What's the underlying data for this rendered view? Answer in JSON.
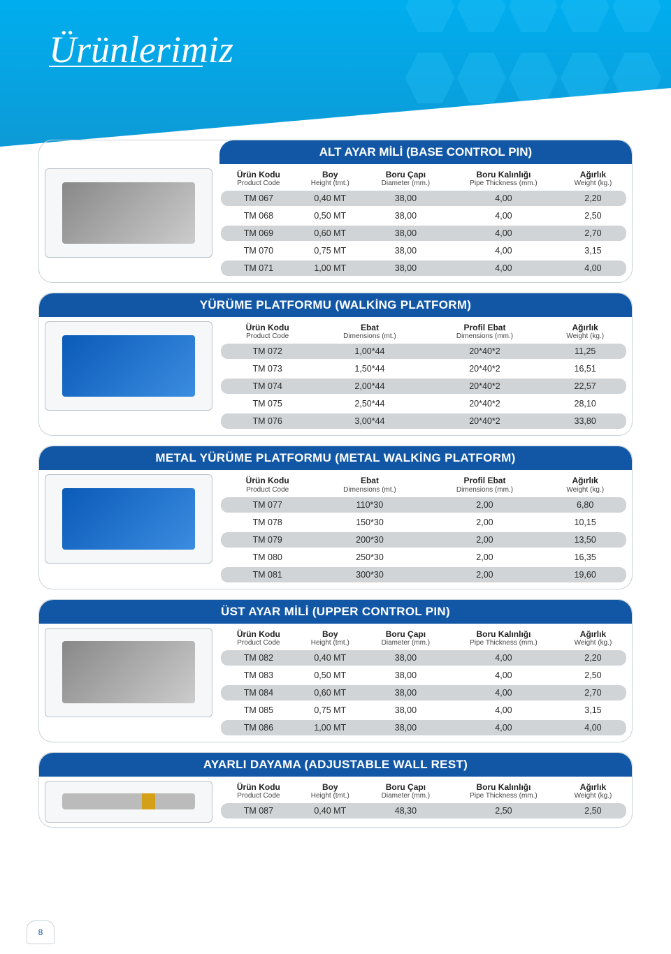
{
  "page_title": "Ürünlerimiz",
  "page_number": "8",
  "colors": {
    "header_bg": "#1157a6",
    "row_alt_bg": "#d0d4d7",
    "top_gradient_from": "#00aeef",
    "top_gradient_to": "#0d9ad6",
    "text": "#2a2a2a"
  },
  "sections": [
    {
      "title": "ALT AYAR MİLİ (BASE CONTROL PIN)",
      "image_style": "steel",
      "header_style": "partial",
      "columns": [
        {
          "label": "Ürün Kodu",
          "sub": "Product Code"
        },
        {
          "label": "Boy",
          "sub": "Height (tmt.)"
        },
        {
          "label": "Boru Çapı",
          "sub": "Diameter (mm.)"
        },
        {
          "label": "Boru Kalınlığı",
          "sub": "Pipe Thickness (mm.)"
        },
        {
          "label": "Ağırlık",
          "sub": "Weight (kg.)"
        }
      ],
      "rows": [
        [
          "TM 067",
          "0,40 MT",
          "38,00",
          "4,00",
          "2,20"
        ],
        [
          "TM 068",
          "0,50 MT",
          "38,00",
          "4,00",
          "2,50"
        ],
        [
          "TM 069",
          "0,60 MT",
          "38,00",
          "4,00",
          "2,70"
        ],
        [
          "TM 070",
          "0,75 MT",
          "38,00",
          "4,00",
          "3,15"
        ],
        [
          "TM 071",
          "1,00 MT",
          "38,00",
          "4,00",
          "4,00"
        ]
      ]
    },
    {
      "title": "YÜRÜME PLATFORMU (WALKİNG PLATFORM)",
      "image_style": "blue",
      "header_style": "full",
      "columns": [
        {
          "label": "Ürün Kodu",
          "sub": "Product Code"
        },
        {
          "label": "Ebat",
          "sub": "Dimensions (mt.)"
        },
        {
          "label": "Profil Ebat",
          "sub": "Dimensions (mm.)"
        },
        {
          "label": "Ağırlık",
          "sub": "Weight (kg.)"
        }
      ],
      "rows": [
        [
          "TM 072",
          "1,00*44",
          "20*40*2",
          "11,25"
        ],
        [
          "TM 073",
          "1,50*44",
          "20*40*2",
          "16,51"
        ],
        [
          "TM 074",
          "2,00*44",
          "20*40*2",
          "22,57"
        ],
        [
          "TM 075",
          "2,50*44",
          "20*40*2",
          "28,10"
        ],
        [
          "TM 076",
          "3,00*44",
          "20*40*2",
          "33,80"
        ]
      ]
    },
    {
      "title": "METAL YÜRÜME PLATFORMU (METAL WALKİNG PLATFORM)",
      "image_style": "blue",
      "header_style": "full",
      "columns": [
        {
          "label": "Ürün Kodu",
          "sub": "Product Code"
        },
        {
          "label": "Ebat",
          "sub": "Dimensions (mt.)"
        },
        {
          "label": "Profil Ebat",
          "sub": "Dimensions (mm.)"
        },
        {
          "label": "Ağırlık",
          "sub": "Weight (kg.)"
        }
      ],
      "rows": [
        [
          "TM 077",
          "110*30",
          "2,00",
          "6,80"
        ],
        [
          "TM 078",
          "150*30",
          "2,00",
          "10,15"
        ],
        [
          "TM 079",
          "200*30",
          "2,00",
          "13,50"
        ],
        [
          "TM 080",
          "250*30",
          "2,00",
          "16,35"
        ],
        [
          "TM 081",
          "300*30",
          "2,00",
          "19,60"
        ]
      ]
    },
    {
      "title": "ÜST AYAR MİLİ (UPPER CONTROL PIN)",
      "image_style": "steel",
      "header_style": "full",
      "columns": [
        {
          "label": "Ürün Kodu",
          "sub": "Product Code"
        },
        {
          "label": "Boy",
          "sub": "Height (tmt.)"
        },
        {
          "label": "Boru Çapı",
          "sub": "Diameter (mm.)"
        },
        {
          "label": "Boru Kalınlığı",
          "sub": "Pipe Thickness (mm.)"
        },
        {
          "label": "Ağırlık",
          "sub": "Weight (kg.)"
        }
      ],
      "rows": [
        [
          "TM 082",
          "0,40 MT",
          "38,00",
          "4,00",
          "2,20"
        ],
        [
          "TM 083",
          "0,50 MT",
          "38,00",
          "4,00",
          "2,50"
        ],
        [
          "TM 084",
          "0,60 MT",
          "38,00",
          "4,00",
          "2,70"
        ],
        [
          "TM 085",
          "0,75 MT",
          "38,00",
          "4,00",
          "3,15"
        ],
        [
          "TM 086",
          "1,00 MT",
          "38,00",
          "4,00",
          "4,00"
        ]
      ]
    },
    {
      "title": "AYARLI DAYAMA (ADJUSTABLE WALL REST)",
      "image_style": "brass",
      "header_style": "full",
      "short_image": true,
      "columns": [
        {
          "label": "Ürün Kodu",
          "sub": "Product Code"
        },
        {
          "label": "Boy",
          "sub": "Height (tmt.)"
        },
        {
          "label": "Boru Çapı",
          "sub": "Diameter (mm.)"
        },
        {
          "label": "Boru Kalınlığı",
          "sub": "Pipe Thickness (mm.)"
        },
        {
          "label": "Ağırlık",
          "sub": "Weight (kg.)"
        }
      ],
      "rows": [
        [
          "TM 087",
          "0,40 MT",
          "48,30",
          "2,50",
          "2,50"
        ]
      ]
    }
  ]
}
